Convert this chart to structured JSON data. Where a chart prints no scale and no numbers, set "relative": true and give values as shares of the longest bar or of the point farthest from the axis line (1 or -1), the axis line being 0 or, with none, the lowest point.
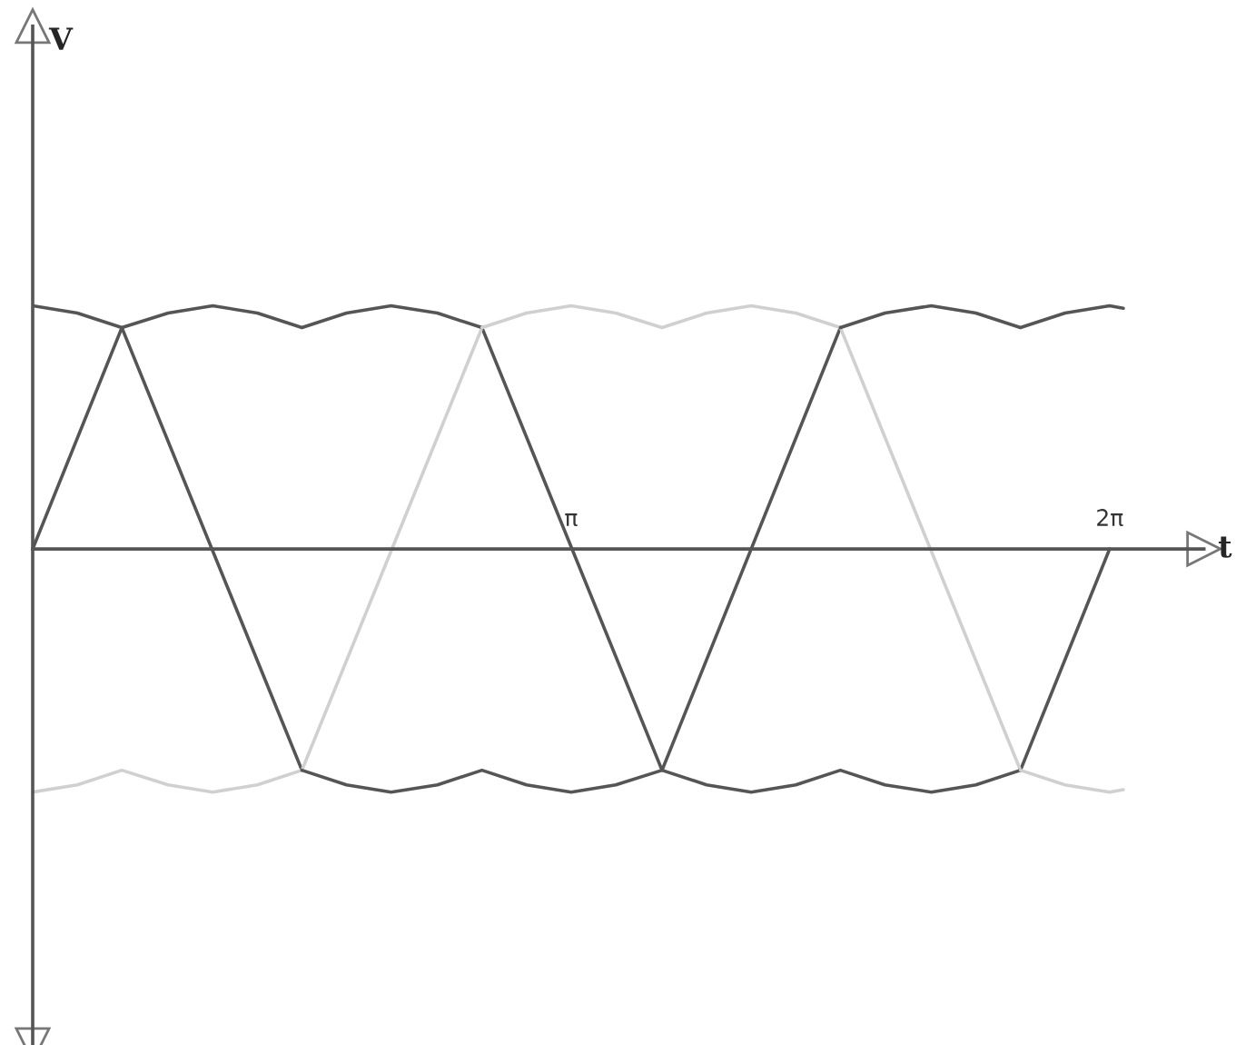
{
  "chart_data": {
    "type": "line",
    "relative": true,
    "xlabel": "t",
    "annotations": [
      "V"
    ],
    "xlim": [
      0,
      6.83
    ],
    "xticks": [
      {
        "value": 3.14,
        "label": "π"
      },
      {
        "value": 6.28,
        "label": "2π"
      }
    ],
    "tick_labels": "x",
    "series": [
      {
        "color": "#555555",
        "x": [
          0,
          0.52,
          1.57
        ],
        "values": [
          0,
          0.91,
          -0.91
        ]
      },
      {
        "color": "#555555",
        "x": [
          2.62,
          3.67,
          4.71
        ],
        "values": [
          0.91,
          -0.91,
          0.91
        ]
      },
      {
        "color": "#555555",
        "x": [
          5.76,
          6.28
        ],
        "values": [
          -0.91,
          0
        ]
      },
      {
        "color": "#d0d0d0",
        "x": [
          1.57,
          2.62
        ],
        "values": [
          -0.91,
          0.91
        ]
      },
      {
        "color": "#d0d0d0",
        "x": [
          4.71,
          5.76
        ],
        "values": [
          0.91,
          -0.91
        ]
      },
      {
        "color": "#555555",
        "x": [
          0,
          0.26,
          0.52,
          0.79,
          1.05,
          1.31,
          1.57,
          1.83,
          2.09,
          2.36,
          2.62
        ],
        "values": [
          1,
          0.97,
          0.91,
          0.97,
          1,
          0.97,
          0.91,
          0.97,
          1,
          0.97,
          0.91
        ]
      },
      {
        "color": "#d0d0d0",
        "x": [
          2.62,
          2.88,
          3.14,
          3.4,
          3.67,
          3.93,
          4.19,
          4.45,
          4.71
        ],
        "values": [
          0.91,
          0.97,
          1,
          0.97,
          0.91,
          0.97,
          1,
          0.97,
          0.91
        ]
      },
      {
        "color": "#555555",
        "x": [
          4.71,
          4.97,
          5.24,
          5.5,
          5.76,
          6.02,
          6.28,
          6.36
        ],
        "values": [
          0.91,
          0.97,
          1,
          0.97,
          0.91,
          0.97,
          1,
          0.99
        ]
      },
      {
        "color": "#d0d0d0",
        "x": [
          0,
          0.26,
          0.52,
          0.79,
          1.05,
          1.31,
          1.57
        ],
        "values": [
          -1,
          -0.97,
          -0.91,
          -0.97,
          -1,
          -0.97,
          -0.91
        ]
      },
      {
        "color": "#555555",
        "x": [
          1.57,
          1.83,
          2.09,
          2.36,
          2.62,
          2.88,
          3.14,
          3.4,
          3.67,
          3.93,
          4.19,
          4.45,
          4.71,
          4.97,
          5.24,
          5.5,
          5.76
        ],
        "values": [
          -0.91,
          -0.97,
          -1,
          -0.97,
          -0.91,
          -0.97,
          -1,
          -0.97,
          -0.91,
          -0.97,
          -1,
          -0.97,
          -0.91,
          -0.97,
          -1,
          -0.97,
          -0.91
        ]
      },
      {
        "color": "#d0d0d0",
        "x": [
          5.76,
          6.02,
          6.28,
          6.36
        ],
        "values": [
          -0.91,
          -0.97,
          -1,
          -0.99
        ]
      }
    ]
  }
}
